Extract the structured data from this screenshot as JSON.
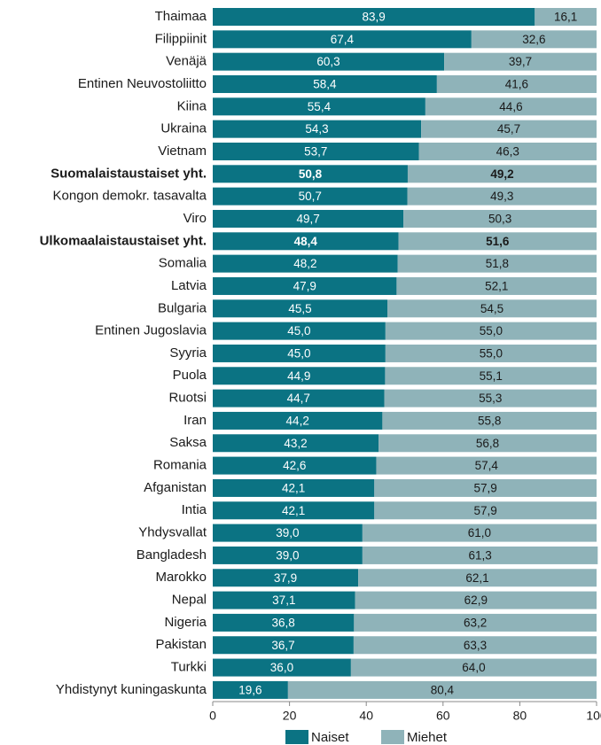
{
  "chart_data": {
    "type": "stacked_bar_horizontal",
    "categories": [
      "Thaimaa",
      "Filippiinit",
      "Venäjä",
      "Entinen Neuvostoliitto",
      "Kiina",
      "Ukraina",
      "Vietnam",
      "Suomalaistaustaiset yht.",
      "Kongon demokr. tasavalta",
      "Viro",
      "Ulkomaalaistaustaiset yht.",
      "Somalia",
      "Latvia",
      "Bulgaria",
      "Entinen Jugoslavia",
      "Syyria",
      "Puola",
      "Ruotsi",
      "Iran",
      "Saksa",
      "Romania",
      "Afganistan",
      "Intia",
      "Yhdysvallat",
      "Bangladesh",
      "Marokko",
      "Nepal",
      "Nigeria",
      "Pakistan",
      "Turkki",
      "Yhdistynyt kuningaskunta"
    ],
    "bold_categories": [
      7,
      10
    ],
    "series": [
      {
        "name": "Naiset",
        "color": "#0b7383",
        "label_color": "#ffffff",
        "values": [
          83.9,
          67.4,
          60.3,
          58.4,
          55.4,
          54.3,
          53.7,
          50.8,
          50.7,
          49.7,
          48.4,
          48.2,
          47.9,
          45.5,
          45.0,
          45.0,
          44.9,
          44.7,
          44.2,
          43.2,
          42.6,
          42.1,
          42.1,
          39.0,
          39.0,
          37.9,
          37.1,
          36.8,
          36.7,
          36.0,
          19.6
        ],
        "value_labels": [
          "83,9",
          "67,4",
          "60,3",
          "58,4",
          "55,4",
          "54,3",
          "53,7",
          "50,8",
          "50,7",
          "49,7",
          "48,4",
          "48,2",
          "47,9",
          "45,5",
          "45,0",
          "45,0",
          "44,9",
          "44,7",
          "44,2",
          "43,2",
          "42,6",
          "42,1",
          "42,1",
          "39,0",
          "39,0",
          "37,9",
          "37,1",
          "36,8",
          "36,7",
          "36,0",
          "19,6"
        ]
      },
      {
        "name": "Miehet",
        "color": "#8fb3b9",
        "label_color": "#1a1a1a",
        "values": [
          16.1,
          32.6,
          39.7,
          41.6,
          44.6,
          45.7,
          46.3,
          49.2,
          49.3,
          50.3,
          51.6,
          51.8,
          52.1,
          54.5,
          55.0,
          55.0,
          55.1,
          55.3,
          55.8,
          56.8,
          57.4,
          57.9,
          57.9,
          61.0,
          61.3,
          62.1,
          62.9,
          63.2,
          63.3,
          64.0,
          80.4
        ],
        "value_labels": [
          "16,1",
          "32,6",
          "39,7",
          "41,6",
          "44,6",
          "45,7",
          "46,3",
          "49,2",
          "49,3",
          "50,3",
          "51,6",
          "51,8",
          "52,1",
          "54,5",
          "55,0",
          "55,0",
          "55,1",
          "55,3",
          "55,8",
          "56,8",
          "57,4",
          "57,9",
          "57,9",
          "61,0",
          "61,3",
          "62,1",
          "62,9",
          "63,2",
          "63,3",
          "64,0",
          "80,4"
        ]
      }
    ],
    "xlim": [
      0,
      100
    ],
    "xticks": [
      0,
      20,
      40,
      60,
      80,
      100
    ],
    "legend": "bottom"
  }
}
